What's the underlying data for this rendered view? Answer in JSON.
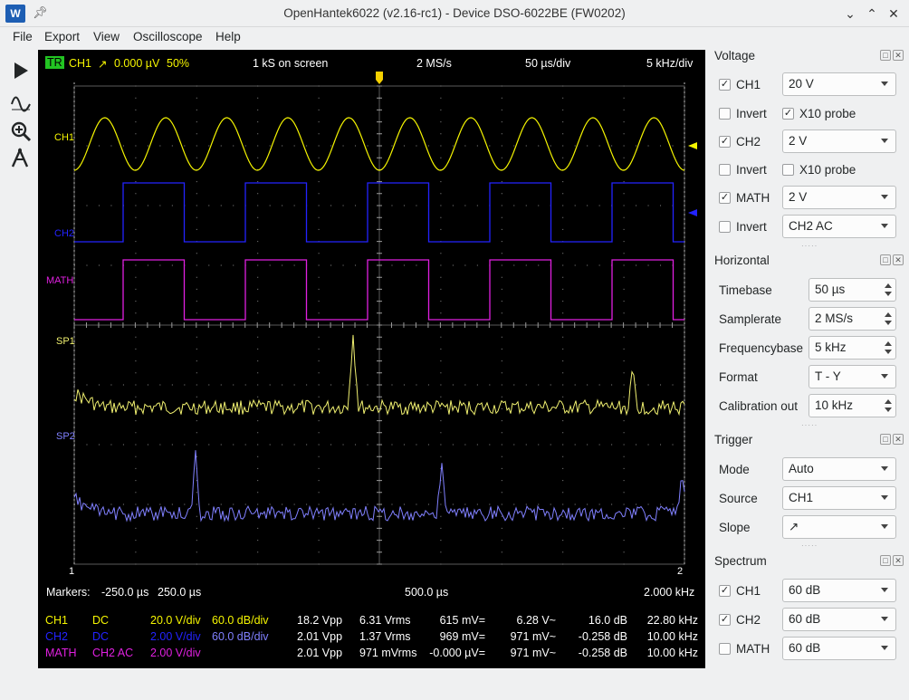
{
  "window": {
    "title": "OpenHantek6022 (v2.16-rc1) - Device DSO-6022BE (FW0202)",
    "app_icon": "W"
  },
  "menu": [
    "File",
    "Export",
    "View",
    "Oscilloscope",
    "Help"
  ],
  "toolbar": [
    "run-icon",
    "waveform-icon",
    "zoom-icon",
    "measure-icon"
  ],
  "scope": {
    "header": {
      "tr": "TR",
      "channel": "CH1",
      "slope": "↗",
      "level": "0.000 µV",
      "percent": "50%",
      "samples": "1 kS on screen",
      "samplerate": "2 MS/s",
      "timebase": "50 µs/div",
      "freqbase": "5 kHz/div"
    },
    "trace_labels": {
      "ch1": "CH1",
      "ch2": "CH2",
      "math": "MATH",
      "sp1": "SP1",
      "sp2": "SP2"
    },
    "marker_labels": {
      "m1": "1",
      "m2": "2"
    },
    "markers": {
      "label": "Markers:",
      "start": "-250.0 µs",
      "end": "250.0 µs",
      "delta": "500.0 µs",
      "freq": "2.000 kHz"
    },
    "measurements": [
      {
        "name": "CH1",
        "coupling": "DC",
        "vdiv": "20.0 V/div",
        "dbdiv": "60.0 dB/div",
        "vpp": "18.2 Vpp",
        "vrms": "6.31 Vrms",
        "dc": "615 mV=",
        "ac": "6.28 V~",
        "db": "16.0 dB",
        "freq": "22.80 kHz"
      },
      {
        "name": "CH2",
        "coupling": "DC",
        "vdiv": "2.00 V/div",
        "dbdiv": "60.0 dB/div",
        "vpp": "2.01 Vpp",
        "vrms": "1.37 Vrms",
        "dc": "969 mV=",
        "ac": "971 mV~",
        "db": "-0.258 dB",
        "freq": "10.00 kHz"
      },
      {
        "name": "MATH",
        "coupling": "CH2 AC",
        "vdiv": "2.00 V/div",
        "dbdiv": "",
        "vpp": "2.01 Vpp",
        "vrms": "971 mVrms",
        "dc": "-0.000 µV=",
        "ac": "971 mV~",
        "db": "-0.258 dB",
        "freq": "10.00 kHz"
      }
    ],
    "colors": {
      "ch1": "#f5f500",
      "ch2": "#2323ff",
      "math": "#e020e0",
      "sp1": "#f0f070",
      "sp2": "#8080ff",
      "grid": "#5a5a5a"
    }
  },
  "voltage": {
    "title": "Voltage",
    "ch1": {
      "label": "CH1",
      "checked": true,
      "value": "20 V"
    },
    "ch1_invert": {
      "label": "Invert",
      "checked": false
    },
    "ch1_probe": {
      "label": "X10 probe",
      "checked": true
    },
    "ch2": {
      "label": "CH2",
      "checked": true,
      "value": "2 V"
    },
    "ch2_invert": {
      "label": "Invert",
      "checked": false
    },
    "ch2_probe": {
      "label": "X10 probe",
      "checked": false
    },
    "math": {
      "label": "MATH",
      "checked": true,
      "value": "2 V"
    },
    "math_invert": {
      "label": "Invert",
      "checked": false,
      "mode": "CH2 AC"
    }
  },
  "horizontal": {
    "title": "Horizontal",
    "timebase": {
      "label": "Timebase",
      "value": "50 µs"
    },
    "samplerate": {
      "label": "Samplerate",
      "value": "2 MS/s"
    },
    "frequencybase": {
      "label": "Frequencybase",
      "value": "5 kHz"
    },
    "format": {
      "label": "Format",
      "value": "T - Y"
    },
    "calibration": {
      "label": "Calibration out",
      "value": "10 kHz"
    }
  },
  "trigger": {
    "title": "Trigger",
    "mode": {
      "label": "Mode",
      "value": "Auto"
    },
    "source": {
      "label": "Source",
      "value": "CH1"
    },
    "slope": {
      "label": "Slope",
      "value": "↗"
    }
  },
  "spectrum": {
    "title": "Spectrum",
    "ch1": {
      "label": "CH1",
      "checked": true,
      "value": "60 dB"
    },
    "ch2": {
      "label": "CH2",
      "checked": true,
      "value": "60 dB"
    },
    "math": {
      "label": "MATH",
      "checked": false,
      "value": "60 dB"
    }
  }
}
